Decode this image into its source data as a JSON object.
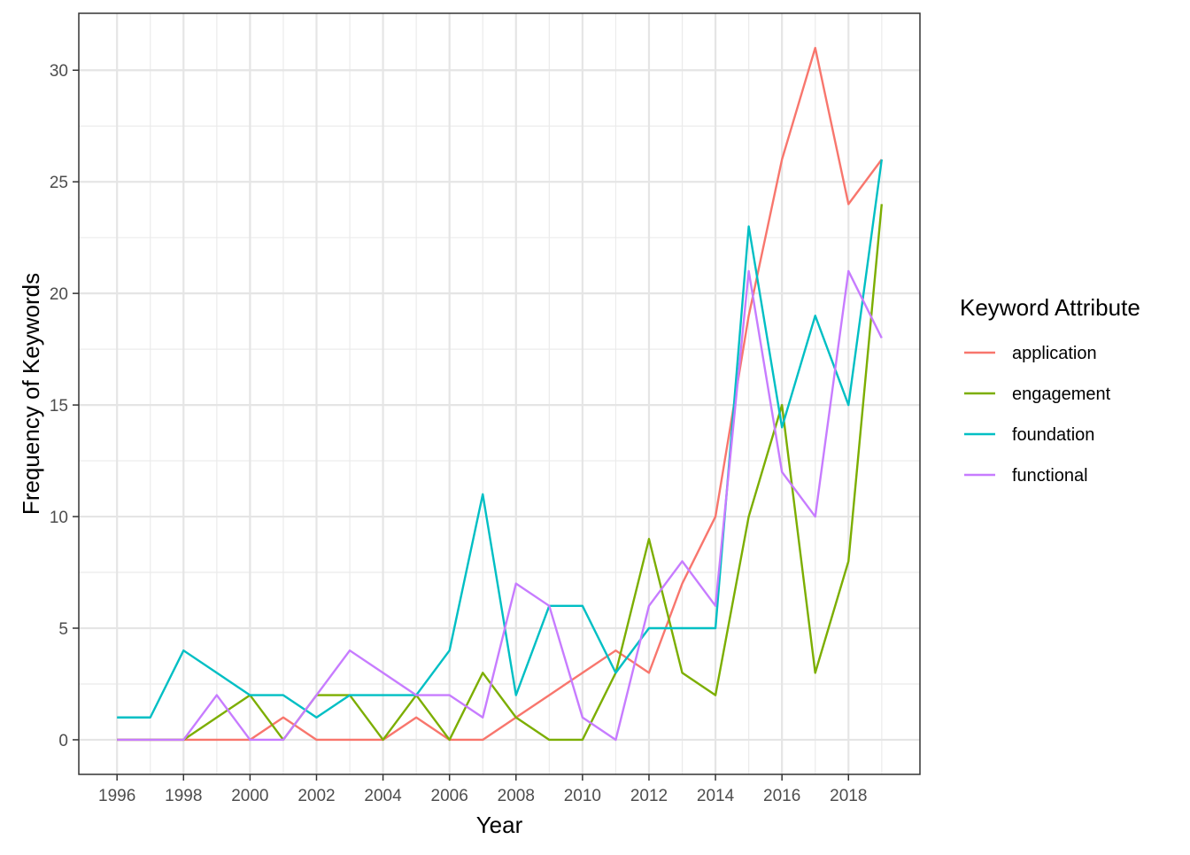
{
  "chart_data": {
    "type": "line",
    "title": "",
    "xlabel": "Year",
    "ylabel": "Frequency of Keywords",
    "x": [
      1996,
      1997,
      1998,
      1999,
      2000,
      2001,
      2002,
      2003,
      2004,
      2005,
      2006,
      2007,
      2008,
      2009,
      2010,
      2011,
      2012,
      2013,
      2014,
      2015,
      2016,
      2017,
      2018,
      2019
    ],
    "xticks": [
      1996,
      1998,
      2000,
      2002,
      2004,
      2006,
      2008,
      2010,
      2012,
      2014,
      2016,
      2018
    ],
    "yticks": [
      0,
      5,
      10,
      15,
      20,
      25,
      30
    ],
    "xlim": [
      1994.85,
      2020.15
    ],
    "ylim": [
      -1.55,
      32.55
    ],
    "grid": true,
    "legend": {
      "title": "Keyword Attribute",
      "placement": "right"
    },
    "series": [
      {
        "name": "application",
        "color": "#F8766D",
        "values": [
          0,
          0,
          0,
          0,
          0,
          1,
          0,
          0,
          0,
          1,
          0,
          0,
          1,
          2,
          3,
          4,
          3,
          7,
          10,
          19,
          26,
          31,
          24,
          26
        ]
      },
      {
        "name": "engagement",
        "color": "#7CAE00",
        "values": [
          0,
          0,
          0,
          1,
          2,
          0,
          2,
          2,
          0,
          2,
          0,
          3,
          1,
          0,
          0,
          3,
          9,
          3,
          2,
          10,
          15,
          3,
          8,
          24
        ]
      },
      {
        "name": "foundation",
        "color": "#00BFC4",
        "values": [
          1,
          1,
          4,
          3,
          2,
          2,
          1,
          2,
          2,
          2,
          4,
          11,
          2,
          6,
          6,
          3,
          5,
          5,
          5,
          23,
          14,
          19,
          15,
          26
        ]
      },
      {
        "name": "functional",
        "color": "#C77CFF",
        "values": [
          0,
          0,
          0,
          2,
          0,
          0,
          2,
          4,
          3,
          2,
          2,
          1,
          7,
          6,
          1,
          0,
          6,
          8,
          6,
          21,
          12,
          10,
          21,
          18
        ]
      }
    ]
  }
}
